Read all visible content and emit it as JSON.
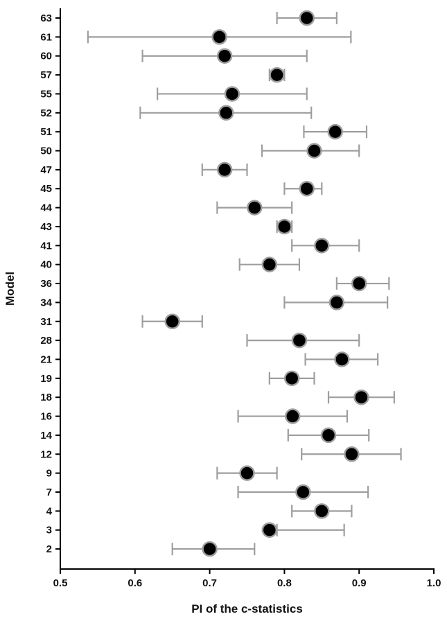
{
  "chart_data": {
    "type": "scatter",
    "xlabel": "PI of the c-statistics",
    "ylabel": "Model",
    "xlim": [
      0.5,
      1.0
    ],
    "xticks": [
      "0.5",
      "0.6",
      "0.7",
      "0.8",
      "0.9",
      "1.0"
    ],
    "grid": false,
    "legend": "none",
    "colors": {
      "point": "#000000",
      "point_outline": "#9e9e9e",
      "errorbar": "#9e9e9e",
      "axis": "#000000"
    },
    "series": [
      {
        "points": [
          {
            "model": "63",
            "estimate": 0.83,
            "lower": 0.79,
            "upper": 0.87
          },
          {
            "model": "61",
            "estimate": 0.713,
            "lower": 0.537,
            "upper": 0.889
          },
          {
            "model": "60",
            "estimate": 0.72,
            "lower": 0.61,
            "upper": 0.83
          },
          {
            "model": "57",
            "estimate": 0.79,
            "lower": 0.78,
            "upper": 0.8
          },
          {
            "model": "55",
            "estimate": 0.73,
            "lower": 0.63,
            "upper": 0.83
          },
          {
            "model": "52",
            "estimate": 0.722,
            "lower": 0.607,
            "upper": 0.836
          },
          {
            "model": "51",
            "estimate": 0.868,
            "lower": 0.826,
            "upper": 0.91
          },
          {
            "model": "50",
            "estimate": 0.84,
            "lower": 0.77,
            "upper": 0.9
          },
          {
            "model": "47",
            "estimate": 0.72,
            "lower": 0.69,
            "upper": 0.75
          },
          {
            "model": "45",
            "estimate": 0.83,
            "lower": 0.8,
            "upper": 0.85
          },
          {
            "model": "44",
            "estimate": 0.76,
            "lower": 0.71,
            "upper": 0.81
          },
          {
            "model": "43",
            "estimate": 0.8,
            "lower": 0.79,
            "upper": 0.81
          },
          {
            "model": "41",
            "estimate": 0.85,
            "lower": 0.81,
            "upper": 0.9
          },
          {
            "model": "40",
            "estimate": 0.78,
            "lower": 0.74,
            "upper": 0.82
          },
          {
            "model": "36",
            "estimate": 0.9,
            "lower": 0.87,
            "upper": 0.94
          },
          {
            "model": "34",
            "estimate": 0.87,
            "lower": 0.8,
            "upper": 0.938
          },
          {
            "model": "31",
            "estimate": 0.65,
            "lower": 0.61,
            "upper": 0.69
          },
          {
            "model": "28",
            "estimate": 0.82,
            "lower": 0.75,
            "upper": 0.9
          },
          {
            "model": "21",
            "estimate": 0.877,
            "lower": 0.828,
            "upper": 0.925
          },
          {
            "model": "19",
            "estimate": 0.81,
            "lower": 0.78,
            "upper": 0.84
          },
          {
            "model": "18",
            "estimate": 0.903,
            "lower": 0.859,
            "upper": 0.947
          },
          {
            "model": "16",
            "estimate": 0.811,
            "lower": 0.738,
            "upper": 0.884
          },
          {
            "model": "14",
            "estimate": 0.859,
            "lower": 0.805,
            "upper": 0.913
          },
          {
            "model": "12",
            "estimate": 0.89,
            "lower": 0.823,
            "upper": 0.956
          },
          {
            "model": "9",
            "estimate": 0.75,
            "lower": 0.71,
            "upper": 0.79
          },
          {
            "model": "7",
            "estimate": 0.825,
            "lower": 0.738,
            "upper": 0.912
          },
          {
            "model": "4",
            "estimate": 0.85,
            "lower": 0.81,
            "upper": 0.89
          },
          {
            "model": "3",
            "estimate": 0.78,
            "lower": 0.79,
            "upper": 0.88
          },
          {
            "model": "2",
            "estimate": 0.7,
            "lower": 0.65,
            "upper": 0.76
          }
        ]
      }
    ]
  }
}
